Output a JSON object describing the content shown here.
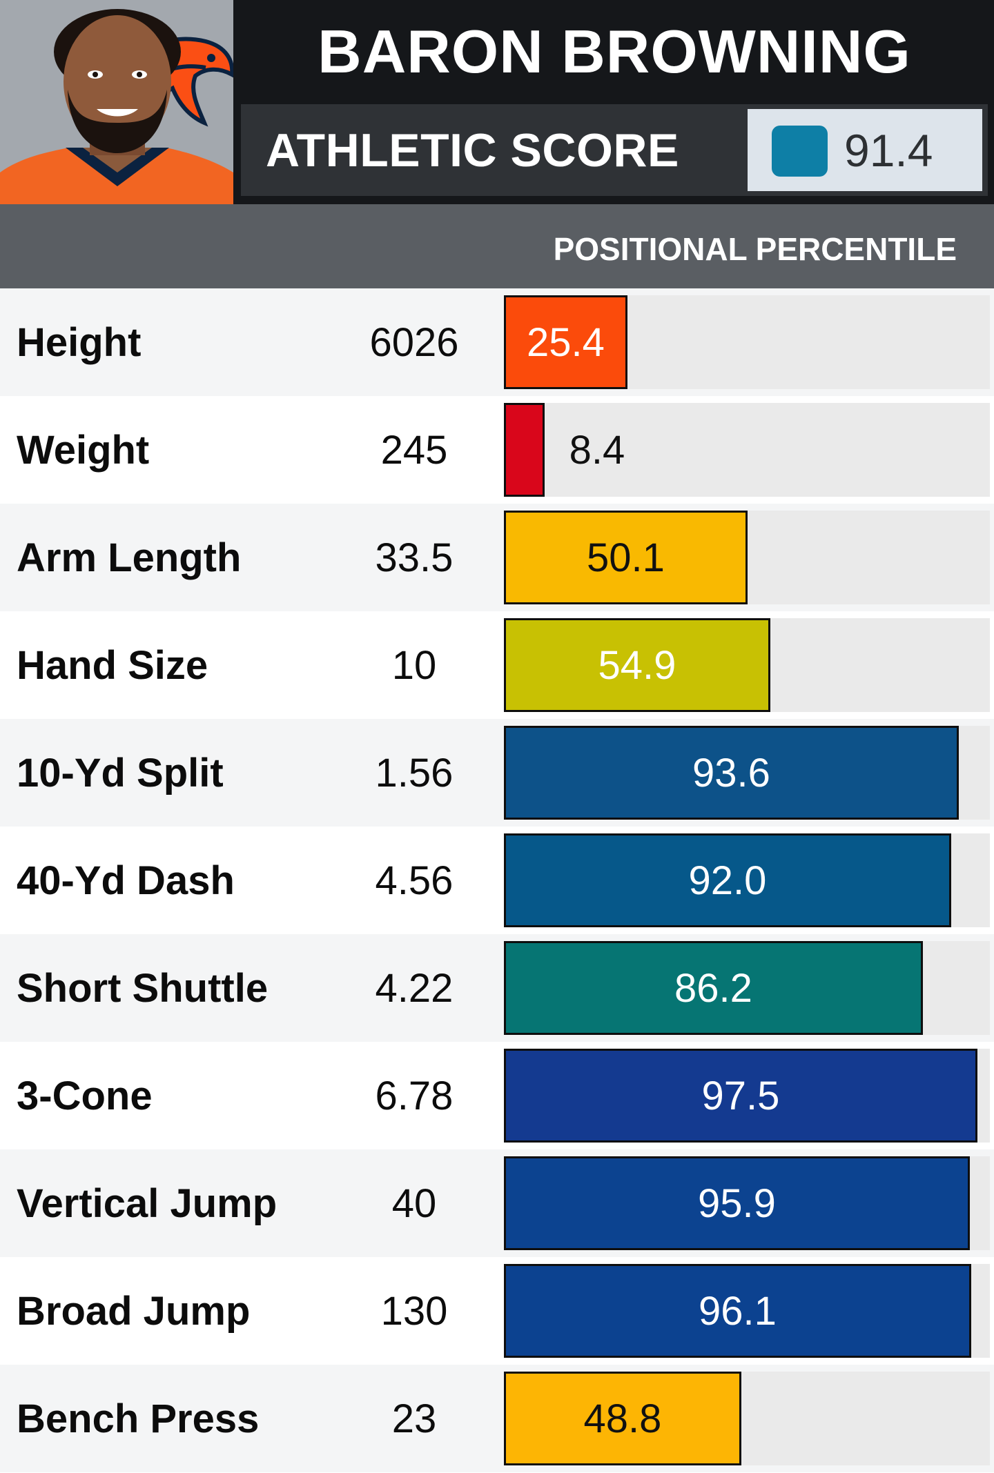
{
  "header": {
    "player_name": "BARON BROWNING",
    "score_label": "ATHLETIC SCORE",
    "score_value": "91.4",
    "score_color": "#0e7fa6",
    "photo_icon": "player-headshot-with-broncos-logo"
  },
  "subheader": {
    "label": "POSITIONAL PERCENTILE"
  },
  "colors": {
    "row_odd": "#f4f5f6",
    "row_even": "#ffffff",
    "track": "#eaeaea",
    "header_bg": "#15171a",
    "subheader_bg": "#5a5e63"
  },
  "chart_data": {
    "type": "bar",
    "orientation": "horizontal",
    "xlim": [
      0,
      100
    ],
    "categories": [
      "Height",
      "Weight",
      "Arm Length",
      "Hand Size",
      "10-Yd Split",
      "40-Yd Dash",
      "Short Shuttle",
      "3-Cone",
      "Vertical Jump",
      "Broad Jump",
      "Bench Press"
    ],
    "measurements": [
      "6026",
      "245",
      "33.5",
      "10",
      "1.56",
      "4.56",
      "4.22",
      "6.78",
      "40",
      "130",
      "23"
    ],
    "values": [
      25.4,
      8.4,
      50.1,
      54.9,
      93.6,
      92.0,
      86.2,
      97.5,
      95.9,
      96.1,
      48.8
    ],
    "value_labels": [
      "25.4",
      "8.4",
      "50.1",
      "54.9",
      "93.6",
      "92.0",
      "86.2",
      "97.5",
      "95.9",
      "96.1",
      "48.8"
    ],
    "bar_colors": [
      "#fb4b0b",
      "#d9061b",
      "#f9b901",
      "#c8c103",
      "#0d5289",
      "#06588a",
      "#067573",
      "#143a90",
      "#0c4390",
      "#0c4290",
      "#fdb504"
    ],
    "label_colors": [
      "#ffffff",
      "#111111",
      "#111111",
      "#ffffff",
      "#ffffff",
      "#ffffff",
      "#ffffff",
      "#ffffff",
      "#ffffff",
      "#ffffff",
      "#111111"
    ]
  }
}
